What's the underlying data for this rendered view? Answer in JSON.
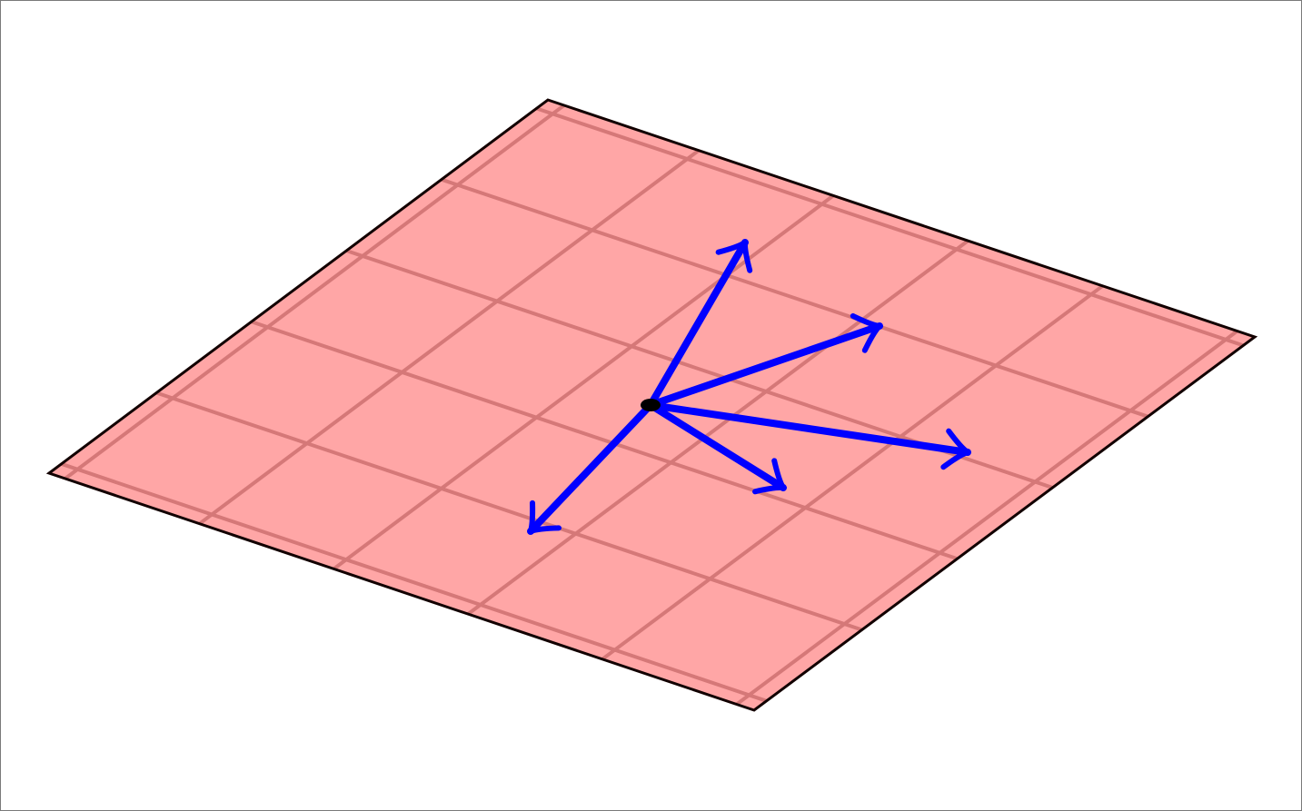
{
  "colors": {
    "background": "#ffffff",
    "frame": "#7a7a7a",
    "plane_fill": "#ffa6a6",
    "plane_edge": "#120000",
    "grid": "#d57878",
    "vector": "#0000ff",
    "origin_point": "#000000"
  },
  "plane": {
    "grid_divisions_u": 6,
    "grid_divisions_v": 6
  },
  "vectors": [
    {
      "name": "vector-up"
    },
    {
      "name": "vector-upper-right"
    },
    {
      "name": "vector-right"
    },
    {
      "name": "vector-lower-right"
    },
    {
      "name": "vector-lower-left"
    }
  ]
}
